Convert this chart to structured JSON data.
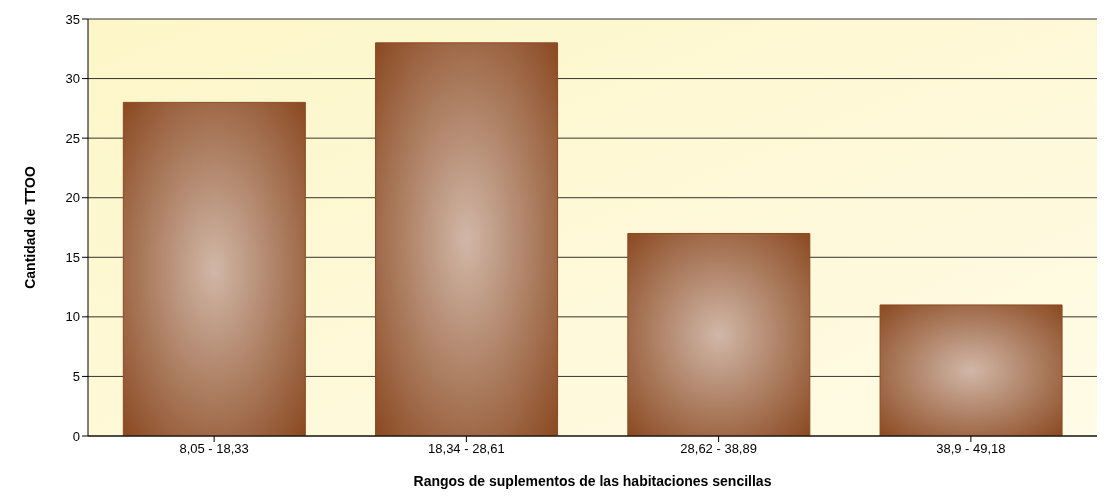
{
  "chart_data": {
    "type": "bar",
    "xlabel": "Rangos de suplementos de las habitaciones sencillas",
    "ylabel": "Cantidad de TTOO",
    "categories": [
      "8,05 - 18,33",
      "18,34 - 28,61",
      "28,62 - 38,89",
      "38,9 - 49,18"
    ],
    "values": [
      28,
      33,
      17,
      11
    ],
    "color": "#8b4a22",
    "ylim": [
      0,
      35
    ],
    "yticks": [
      0,
      5,
      10,
      15,
      20,
      25,
      30,
      35
    ],
    "grid": "y",
    "legend": false
  }
}
